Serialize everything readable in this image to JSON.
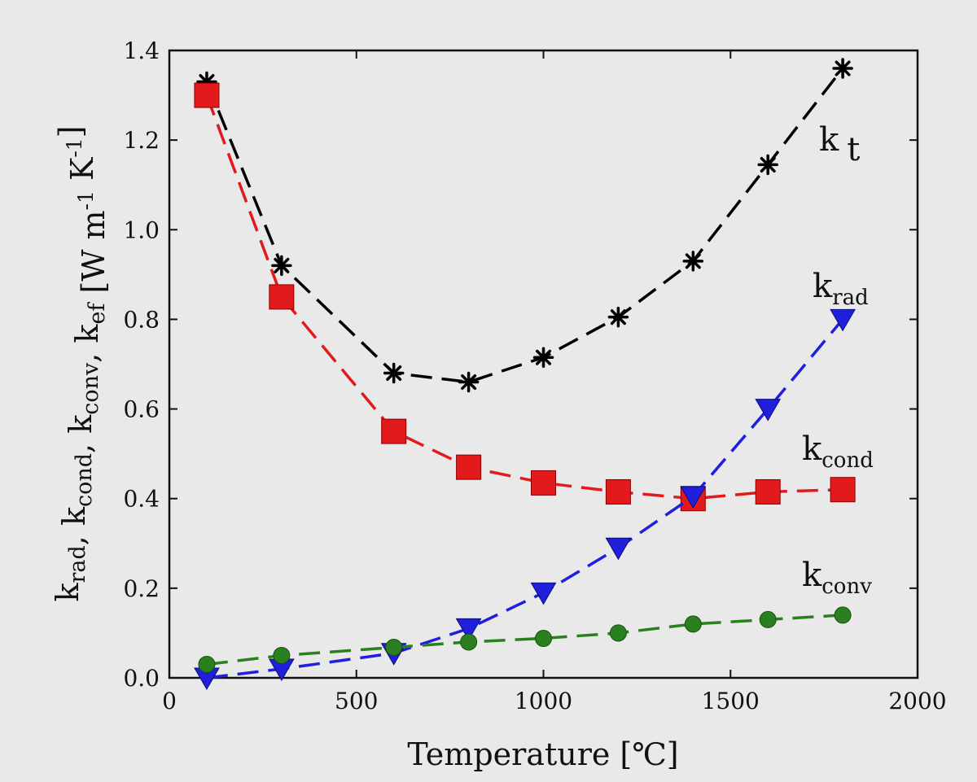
{
  "chart_data": {
    "type": "line",
    "xlabel": "Temperature [℃]",
    "xlim": [
      0,
      2000
    ],
    "ylim": [
      0,
      1.4
    ],
    "xticks": [
      "0",
      "500",
      "1000",
      "1500",
      "2000"
    ],
    "yticks": [
      "0.0",
      "0.2",
      "0.4",
      "0.6",
      "0.8",
      "1.0",
      "1.2",
      "1.4"
    ],
    "ylabel_parts": [
      {
        "text": "k",
        "sub": "rad"
      },
      {
        "text": ", k",
        "sub": "cond"
      },
      {
        "text": ", k",
        "sub": "conv"
      },
      {
        "text": ", k",
        "sub": "ef"
      },
      {
        "text": " [W m"
      },
      {
        "sup": "-1"
      },
      {
        "text": " K"
      },
      {
        "sup": "-1"
      },
      {
        "text": "]"
      }
    ],
    "grid": false,
    "series": [
      {
        "id": "kt",
        "label": "k",
        "label_sub": "t",
        "label_sub_mode": "inline",
        "color": "#000000",
        "marker": "asterisk",
        "points": [
          [
            100,
            1.33
          ],
          [
            300,
            0.92
          ],
          [
            600,
            0.68
          ],
          [
            800,
            0.66
          ],
          [
            1000,
            0.715
          ],
          [
            1200,
            0.805
          ],
          [
            1400,
            0.93
          ],
          [
            1600,
            1.145
          ],
          [
            1800,
            1.36
          ]
        ]
      },
      {
        "id": "kcond",
        "label": "k",
        "label_sub": "cond",
        "color": "#e31a1c",
        "marker": "square",
        "points": [
          [
            100,
            1.3
          ],
          [
            300,
            0.85
          ],
          [
            600,
            0.55
          ],
          [
            800,
            0.47
          ],
          [
            1000,
            0.435
          ],
          [
            1200,
            0.415
          ],
          [
            1400,
            0.4
          ],
          [
            1600,
            0.415
          ],
          [
            1800,
            0.42
          ]
        ]
      },
      {
        "id": "krad",
        "label": "k",
        "label_sub": "rad",
        "color": "#1f1fdc",
        "marker": "triangle-down",
        "points": [
          [
            100,
            0.0
          ],
          [
            300,
            0.02
          ],
          [
            600,
            0.055
          ],
          [
            800,
            0.11
          ],
          [
            1000,
            0.19
          ],
          [
            1200,
            0.29
          ],
          [
            1400,
            0.405
          ],
          [
            1600,
            0.6
          ],
          [
            1800,
            0.8
          ]
        ]
      },
      {
        "id": "kconv",
        "label": "k",
        "label_sub": "conv",
        "color": "#2a7f1e",
        "marker": "circle",
        "points": [
          [
            100,
            0.03
          ],
          [
            300,
            0.05
          ],
          [
            600,
            0.068
          ],
          [
            800,
            0.08
          ],
          [
            1000,
            0.088
          ],
          [
            1200,
            0.1
          ],
          [
            1400,
            0.12
          ],
          [
            1600,
            0.13
          ],
          [
            1800,
            0.14
          ]
        ]
      }
    ]
  }
}
